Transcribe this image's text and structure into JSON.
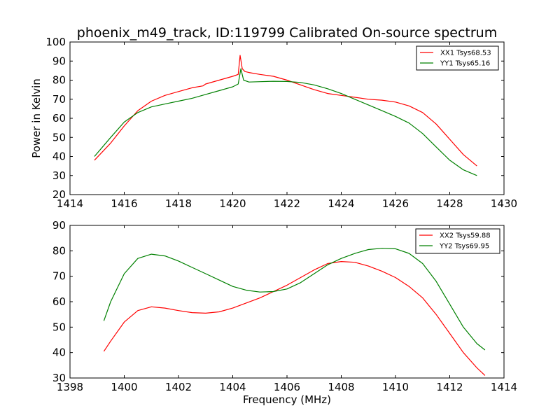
{
  "title": "phoenix_m49_track, ID:119799 Calibrated On-source spectrum",
  "chart_data": [
    {
      "type": "line",
      "title": "phoenix_m49_track, ID:119799 Calibrated On-source spectrum",
      "xlabel": "",
      "ylabel": "Power in Kelvin",
      "xlim": [
        1414,
        1430
      ],
      "ylim": [
        20,
        100
      ],
      "xticks": [
        1414,
        1416,
        1418,
        1420,
        1422,
        1424,
        1426,
        1428,
        1430
      ],
      "yticks": [
        20,
        30,
        40,
        50,
        60,
        70,
        80,
        90,
        100
      ],
      "grid": false,
      "legend_position": "top-right",
      "series": [
        {
          "name": "XX1 Tsys68.53",
          "color": "#ff0000",
          "x": [
            1414.9,
            1415.5,
            1416.0,
            1416.5,
            1417.0,
            1417.5,
            1418.0,
            1418.5,
            1418.9,
            1419.0,
            1419.5,
            1420.0,
            1420.2,
            1420.27,
            1420.35,
            1420.45,
            1420.6,
            1421.0,
            1421.5,
            1422.0,
            1422.5,
            1423.0,
            1423.5,
            1424.0,
            1424.5,
            1425.0,
            1425.5,
            1426.0,
            1426.5,
            1427.0,
            1427.5,
            1428.0,
            1428.5,
            1429.0
          ],
          "y": [
            38,
            47,
            56,
            64,
            69,
            72,
            74,
            76,
            77,
            78,
            80,
            82,
            83,
            93,
            86,
            84.5,
            84,
            83,
            82,
            80,
            77.5,
            75,
            73,
            72,
            71,
            70,
            69.5,
            68.5,
            66.5,
            63,
            57,
            49,
            41,
            35
          ]
        },
        {
          "name": "YY1 Tsys65.16",
          "color": "#008000",
          "x": [
            1414.9,
            1415.5,
            1416.0,
            1416.5,
            1417.0,
            1417.5,
            1418.0,
            1418.5,
            1419.0,
            1419.5,
            1420.0,
            1420.2,
            1420.3,
            1420.4,
            1420.6,
            1421.0,
            1421.5,
            1422.0,
            1422.5,
            1423.0,
            1423.5,
            1424.0,
            1424.5,
            1425.0,
            1425.5,
            1426.0,
            1426.5,
            1427.0,
            1427.5,
            1428.0,
            1428.5,
            1429.0
          ],
          "y": [
            40,
            50,
            58,
            63,
            66,
            67.5,
            69,
            70.5,
            72.5,
            74.5,
            76.5,
            78,
            86,
            80,
            79,
            79.2,
            79.4,
            79.3,
            78.8,
            77.5,
            75.5,
            73,
            70,
            67,
            64,
            61,
            57.5,
            52,
            45,
            38,
            33,
            30
          ]
        }
      ]
    },
    {
      "type": "line",
      "title": "",
      "xlabel": "Frequency (MHz)",
      "ylabel": "",
      "xlim": [
        1398,
        1414
      ],
      "ylim": [
        30,
        90
      ],
      "xticks": [
        1398,
        1400,
        1402,
        1404,
        1406,
        1408,
        1410,
        1412,
        1414
      ],
      "yticks": [
        30,
        40,
        50,
        60,
        70,
        80,
        90
      ],
      "grid": false,
      "legend_position": "top-right",
      "series": [
        {
          "name": "XX2 Tsys59.88",
          "color": "#ff0000",
          "x": [
            1399.25,
            1399.5,
            1400.0,
            1400.5,
            1401.0,
            1401.5,
            1402.0,
            1402.5,
            1403.0,
            1403.5,
            1404.0,
            1404.5,
            1405.0,
            1405.5,
            1406.0,
            1406.5,
            1407.0,
            1407.5,
            1408.0,
            1408.5,
            1409.0,
            1409.5,
            1410.0,
            1410.5,
            1411.0,
            1411.5,
            1412.0,
            1412.5,
            1413.0,
            1413.3
          ],
          "y": [
            40.5,
            44.5,
            52,
            56.5,
            58,
            57.5,
            56.5,
            55.7,
            55.5,
            56,
            57.5,
            59.5,
            61.5,
            64,
            66.5,
            69.5,
            72.5,
            75,
            75.8,
            75.5,
            74,
            72,
            69.5,
            66,
            61.5,
            55,
            47.5,
            40,
            34,
            31
          ]
        },
        {
          "name": "YY2 Tsys69.95",
          "color": "#008000",
          "x": [
            1399.25,
            1399.5,
            1400.0,
            1400.5,
            1401.0,
            1401.5,
            1402.0,
            1402.5,
            1403.0,
            1403.5,
            1404.0,
            1404.5,
            1405.0,
            1405.5,
            1406.0,
            1406.5,
            1407.0,
            1407.5,
            1408.0,
            1408.5,
            1409.0,
            1409.5,
            1410.0,
            1410.5,
            1411.0,
            1411.5,
            1412.0,
            1412.5,
            1413.0,
            1413.3
          ],
          "y": [
            52.5,
            60,
            71,
            77,
            78.7,
            78,
            76,
            73.5,
            71,
            68.5,
            66,
            64.5,
            63.8,
            64,
            65,
            67.5,
            71,
            74.5,
            77,
            79,
            80.5,
            81,
            80.8,
            79,
            75,
            68,
            59,
            50,
            43.5,
            41
          ]
        }
      ]
    }
  ]
}
